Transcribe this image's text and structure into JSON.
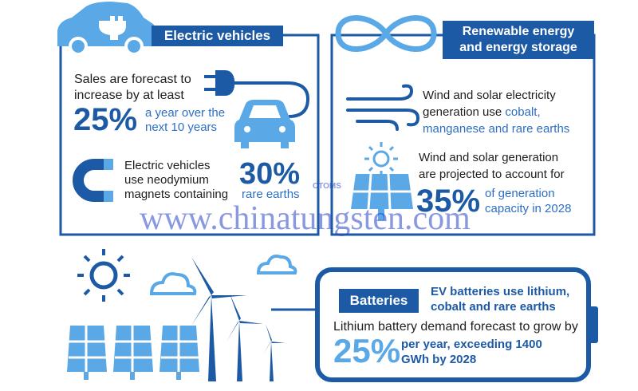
{
  "electric_vehicles": {
    "title": "Electric vehicles",
    "sales_text": [
      "Sales are forecast to",
      "increase by at least"
    ],
    "sales_percent": "25%",
    "sales_detail": [
      "a year over the",
      "next 10 years"
    ],
    "magnet_text": [
      "Electric vehicles",
      "use neodymium",
      "magnets containing"
    ],
    "magnet_percent": "30%",
    "magnet_detail": "rare earths"
  },
  "renewable": {
    "title": [
      "Renewable energy",
      "and energy storage"
    ],
    "materials_text": [
      "Wind and solar electricity",
      "generation use"
    ],
    "materials_highlight": [
      "cobalt,",
      "manganese and rare earths"
    ],
    "generation_text": [
      "Wind and solar generation",
      "are projected to account for"
    ],
    "generation_percent": "35%",
    "generation_detail": [
      "of generation",
      "capacity in 2028"
    ]
  },
  "batteries": {
    "label": "Batteries",
    "headline": [
      "EV batteries use lithium,",
      "cobalt and rare earths"
    ],
    "forecast_text": "Lithium battery demand forecast to grow by",
    "forecast_percent": "25%",
    "forecast_detail": [
      "per year, exceeding 1400",
      "GWh by 2028"
    ]
  },
  "watermark": {
    "url": "www.chinatungsten.com",
    "logo": "CTOMS"
  }
}
